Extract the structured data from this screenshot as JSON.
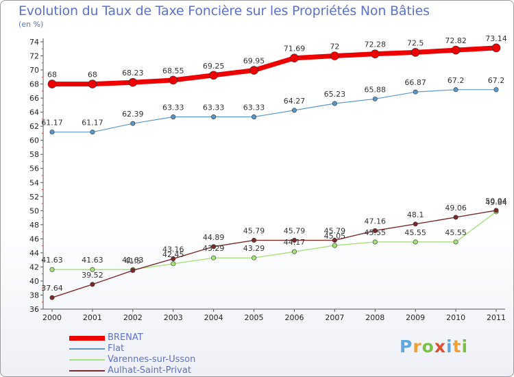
{
  "header": {
    "title": "Evolution du Taux de Taxe Foncière sur les Propriétés Non Bâties",
    "subtitle": "(en %)"
  },
  "logo": {
    "letters": [
      "P",
      "r",
      "o",
      "x",
      "i",
      "t",
      "i"
    ],
    "colors": [
      "#5fa8e0",
      "#f0a030",
      "#7ac143",
      "#e05030",
      "#5fa8e0",
      "#f0a030",
      "#7ac143"
    ]
  },
  "chart_data": {
    "type": "line",
    "x": [
      "2000",
      "2001",
      "2002",
      "2003",
      "2004",
      "2005",
      "2006",
      "2007",
      "2008",
      "2009",
      "2010",
      "2011"
    ],
    "ylim": [
      36,
      74
    ],
    "yticks": [
      36,
      38,
      40,
      42,
      44,
      46,
      48,
      50,
      52,
      54,
      56,
      58,
      60,
      62,
      64,
      66,
      68,
      70,
      72,
      74
    ],
    "grid": false,
    "legend_position": "bottom-left",
    "series": [
      {
        "name": "BRENAT",
        "color": "#ee0000",
        "values": [
          68,
          68,
          68.23,
          68.55,
          69.25,
          69.95,
          71.69,
          72,
          72.28,
          72.5,
          72.82,
          73.14
        ],
        "labels": [
          "68",
          "68",
          "68.23",
          "68.55",
          "69.25",
          "69.95",
          "71.69",
          "72",
          "72.28",
          "72.5",
          "72.82",
          "73.14"
        ]
      },
      {
        "name": "Flat",
        "color": "#5b96c8",
        "values": [
          61.17,
          61.17,
          62.39,
          63.33,
          63.33,
          63.33,
          64.27,
          65.23,
          65.88,
          66.87,
          67.2,
          67.2
        ],
        "labels": [
          "61.17",
          "61.17",
          "62.39",
          "63.33",
          "63.33",
          "63.33",
          "64.27",
          "65.23",
          "65.88",
          "66.87",
          "67.2",
          "67.2"
        ]
      },
      {
        "name": "Varennes-sur-Usson",
        "color": "#a6e07a",
        "values": [
          41.63,
          41.63,
          41.63,
          42.45,
          43.29,
          43.29,
          44.17,
          45.05,
          45.55,
          45.55,
          45.55,
          49.84
        ],
        "labels": [
          "41.63",
          "41.63",
          "41.63",
          "42.45",
          "43.29",
          "43.29",
          "44.17",
          "45.05",
          "45.55",
          "45.55",
          "45.55",
          "49.84"
        ]
      },
      {
        "name": "Aulhat-Saint-Privat",
        "color": "#7a2a2a",
        "values": [
          37.64,
          39.52,
          41.5,
          43.16,
          44.89,
          45.79,
          45.79,
          45.79,
          47.16,
          48.1,
          49.06,
          50.04
        ],
        "labels": [
          "37.64",
          "39.52",
          "41.5",
          "43.16",
          "44.89",
          "45.79",
          "45.79",
          "45.79",
          "47.16",
          "48.1",
          "49.06",
          "50.04"
        ]
      }
    ]
  }
}
